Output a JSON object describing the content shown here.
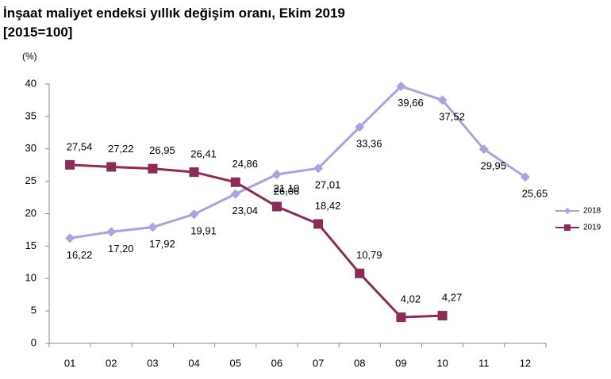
{
  "chart_data": {
    "type": "line",
    "title": "İnşaat maliyet endeksi yıllık değişim oranı, Ekim 2019",
    "subtitle": "[2015=100]",
    "y_label": "(%)",
    "categories": [
      "01",
      "02",
      "03",
      "04",
      "05",
      "06",
      "07",
      "08",
      "09",
      "10",
      "11",
      "12"
    ],
    "series": [
      {
        "name": "2018",
        "color": "#a9a3e2",
        "marker": "diamond",
        "values": [
          16.22,
          17.2,
          17.92,
          19.91,
          23.04,
          26.06,
          27.01,
          33.36,
          39.66,
          37.52,
          29.95,
          25.65
        ],
        "value_labels": [
          "16,22",
          "17,20",
          "17,92",
          "19,91",
          "23,04",
          "26,06",
          "27,01",
          "33,36",
          "39,66",
          "37,52",
          "29,95",
          "25,65"
        ]
      },
      {
        "name": "2019",
        "color": "#8b2b56",
        "marker": "square",
        "values": [
          27.54,
          27.22,
          26.95,
          26.41,
          24.86,
          21.1,
          18.42,
          10.79,
          4.02,
          4.27,
          null,
          null
        ],
        "value_labels": [
          "27,54",
          "27,22",
          "26,95",
          "26,41",
          "24,86",
          "21,10",
          "18,42",
          "10,79",
          "4,02",
          "4,27",
          null,
          null
        ]
      }
    ],
    "ylim": [
      0,
      40
    ],
    "yticks": [
      0,
      5,
      10,
      15,
      20,
      25,
      30,
      35,
      40
    ],
    "legend": "right"
  }
}
